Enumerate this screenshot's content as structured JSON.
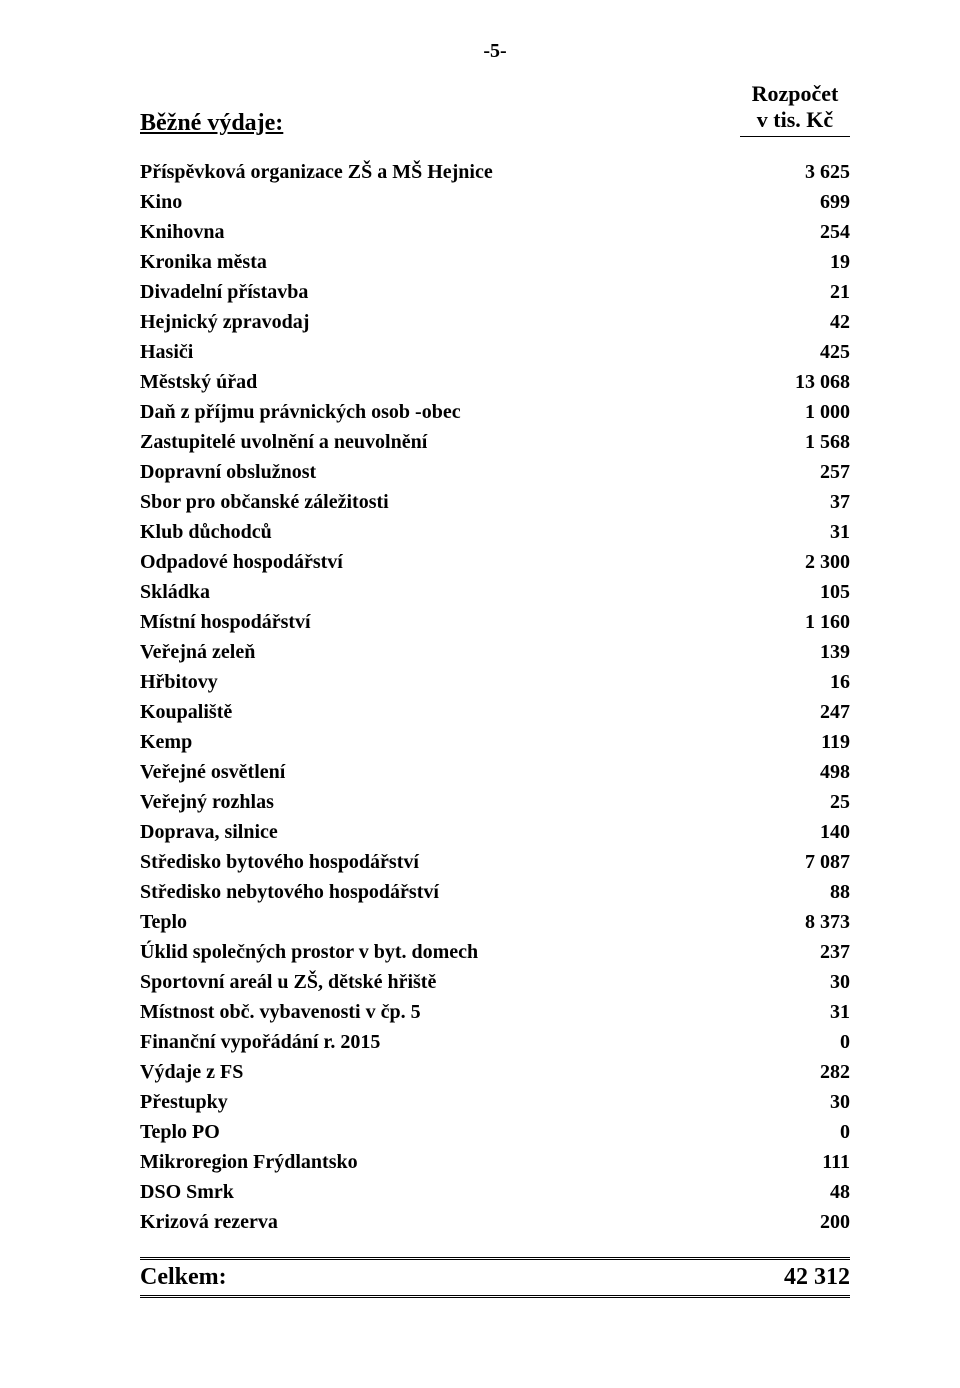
{
  "page_number": "-5-",
  "header": {
    "left": "Běžné výdaje:",
    "right_line1": "Rozpočet",
    "right_line2": "v tis. Kč"
  },
  "items": [
    {
      "label": "Příspěvková organizace ZŠ a MŠ Hejnice",
      "value": "3 625"
    },
    {
      "label": "Kino",
      "value": "699"
    },
    {
      "label": "Knihovna",
      "value": "254"
    },
    {
      "label": "Kronika města",
      "value": "19"
    },
    {
      "label": "Divadelní přístavba",
      "value": "21"
    },
    {
      "label": "Hejnický zpravodaj",
      "value": "42"
    },
    {
      "label": "Hasiči",
      "value": "425"
    },
    {
      "label": "Městský úřad",
      "value": "13 068"
    },
    {
      "label": "Daň z příjmu právnických osob -obec",
      "value": "1 000"
    },
    {
      "label": "Zastupitelé uvolnění a neuvolnění",
      "value": "1 568"
    },
    {
      "label": "Dopravní obslužnost",
      "value": "257"
    },
    {
      "label": "Sbor pro občanské záležitosti",
      "value": "37"
    },
    {
      "label": "Klub důchodců",
      "value": "31"
    },
    {
      "label": "Odpadové hospodářství",
      "value": "2 300"
    },
    {
      "label": "Skládka",
      "value": "105"
    },
    {
      "label": "Místní hospodářství",
      "value": "1 160"
    },
    {
      "label": "Veřejná zeleň",
      "value": "139"
    },
    {
      "label": "Hřbitovy",
      "value": "16"
    },
    {
      "label": "Koupaliště",
      "value": "247"
    },
    {
      "label": "Kemp",
      "value": "119"
    },
    {
      "label": "Veřejné osvětlení",
      "value": "498"
    },
    {
      "label": "Veřejný rozhlas",
      "value": "25"
    },
    {
      "label": "Doprava, silnice",
      "value": "140"
    },
    {
      "label": "Středisko bytového hospodářství",
      "value": "7 087"
    },
    {
      "label": "Středisko nebytového hospodářství",
      "value": "88"
    },
    {
      "label": "Teplo",
      "value": "8 373"
    },
    {
      "label": "Úklid společných prostor v byt. domech",
      "value": "237"
    },
    {
      "label": "Sportovní areál u ZŠ, dětské hřiště",
      "value": "30"
    },
    {
      "label": "Místnost obč. vybavenosti v čp. 5",
      "value": "31"
    },
    {
      "label": "Finanční vypořádání r. 2015",
      "value": "0"
    },
    {
      "label": "Výdaje z FS",
      "value": "282"
    },
    {
      "label": "Přestupky",
      "value": "30"
    },
    {
      "label": "Teplo PO",
      "value": "0"
    },
    {
      "label": "Mikroregion Frýdlantsko",
      "value": "111"
    },
    {
      "label": "DSO Smrk",
      "value": "48"
    },
    {
      "label": "Krizová rezerva",
      "value": "200"
    }
  ],
  "total": {
    "label": "Celkem:",
    "value": "42 312"
  },
  "style": {
    "font_family": "Times New Roman",
    "text_color": "#000000",
    "background_color": "#ffffff",
    "body_fontsize_pt": 15,
    "header_fontsize_pt": 18,
    "total_border_style": "double"
  }
}
